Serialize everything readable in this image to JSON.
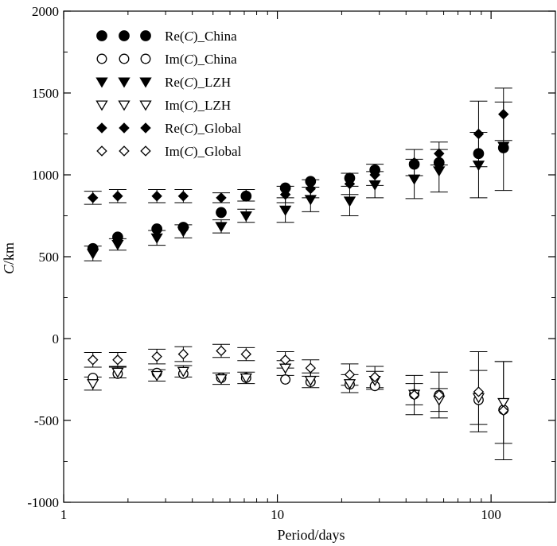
{
  "chart_data": {
    "type": "scatter",
    "title": "",
    "xlabel": "Period/days",
    "ylabel_parts": [
      "C",
      "/km"
    ],
    "xscale": "log",
    "xlim": [
      1,
      200
    ],
    "ylim": [
      -1000,
      2000
    ],
    "x_ticks": [
      1,
      10,
      100
    ],
    "x_tick_labels": [
      "1",
      "10",
      "100"
    ],
    "y_ticks": [
      -1000,
      -500,
      0,
      500,
      1000,
      1500,
      2000
    ],
    "y_tick_labels": [
      "-1000",
      "-500",
      "0",
      "500",
      "1000",
      "1500",
      "2000"
    ],
    "grid": false,
    "legend_position": "top-left",
    "x": [
      1.37,
      1.79,
      2.73,
      3.63,
      5.46,
      7.14,
      10.9,
      14.3,
      21.8,
      28.6,
      43.7,
      57.1,
      87.4,
      114.3
    ],
    "series": [
      {
        "label_prefix": "Re(",
        "label_var": "C",
        "label_suffix": ")_China",
        "marker": "circle-filled",
        "color": "#000000",
        "values": [
          550,
          620,
          670,
          680,
          770,
          870,
          920,
          960,
          980,
          1030,
          1065,
          1075,
          1130,
          1165
        ],
        "errors": [
          0,
          0,
          0,
          0,
          0,
          0,
          0,
          0,
          0,
          0,
          0,
          0,
          0,
          0
        ]
      },
      {
        "label_prefix": "Im(",
        "label_var": "C",
        "label_suffix": ")_China",
        "marker": "circle-open",
        "color": "#000000",
        "values": [
          -240,
          -215,
          -210,
          -215,
          -240,
          -240,
          -250,
          -265,
          -280,
          -290,
          -340,
          -345,
          -375,
          -435
        ],
        "errors": [
          0,
          0,
          0,
          0,
          0,
          0,
          0,
          0,
          0,
          0,
          0,
          0,
          0,
          0
        ]
      },
      {
        "label_prefix": "Re(",
        "label_var": "C",
        "label_suffix": ")_LZH",
        "marker": "triangle-down-filled",
        "color": "#000000",
        "values": [
          520,
          575,
          615,
          655,
          685,
          750,
          785,
          850,
          840,
          940,
          975,
          1025,
          1060,
          1175
        ],
        "errors": [
          45,
          35,
          45,
          40,
          40,
          40,
          75,
          75,
          90,
          80,
          120,
          130,
          200,
          270
        ]
      },
      {
        "label_prefix": "Im(",
        "label_var": "C",
        "label_suffix": ")_LZH",
        "marker": "triangle-down-open",
        "color": "#000000",
        "values": [
          -275,
          -205,
          -225,
          -200,
          -245,
          -240,
          -180,
          -255,
          -275,
          -255,
          -340,
          -375,
          -360,
          -390
        ],
        "errors": [
          40,
          35,
          35,
          35,
          35,
          35,
          45,
          45,
          55,
          55,
          65,
          70,
          165,
          250
        ]
      },
      {
        "label_prefix": "Re(",
        "label_var": "C",
        "label_suffix": ")_Global",
        "marker": "diamond-filled",
        "color": "#000000",
        "values": [
          860,
          870,
          870,
          870,
          860,
          875,
          880,
          915,
          945,
          1000,
          1075,
          1130,
          1250,
          1370
        ],
        "errors": [
          40,
          40,
          40,
          40,
          30,
          35,
          50,
          55,
          65,
          65,
          80,
          70,
          200,
          160
        ]
      },
      {
        "label_prefix": "Im(",
        "label_var": "C",
        "label_suffix": ")_Global",
        "marker": "diamond-open",
        "color": "#000000",
        "values": [
          -130,
          -130,
          -110,
          -95,
          -75,
          -95,
          -130,
          -180,
          -220,
          -235,
          -345,
          -345,
          -325,
          -440
        ],
        "errors": [
          45,
          45,
          45,
          45,
          40,
          40,
          50,
          50,
          65,
          65,
          120,
          140,
          245,
          300
        ]
      }
    ]
  }
}
